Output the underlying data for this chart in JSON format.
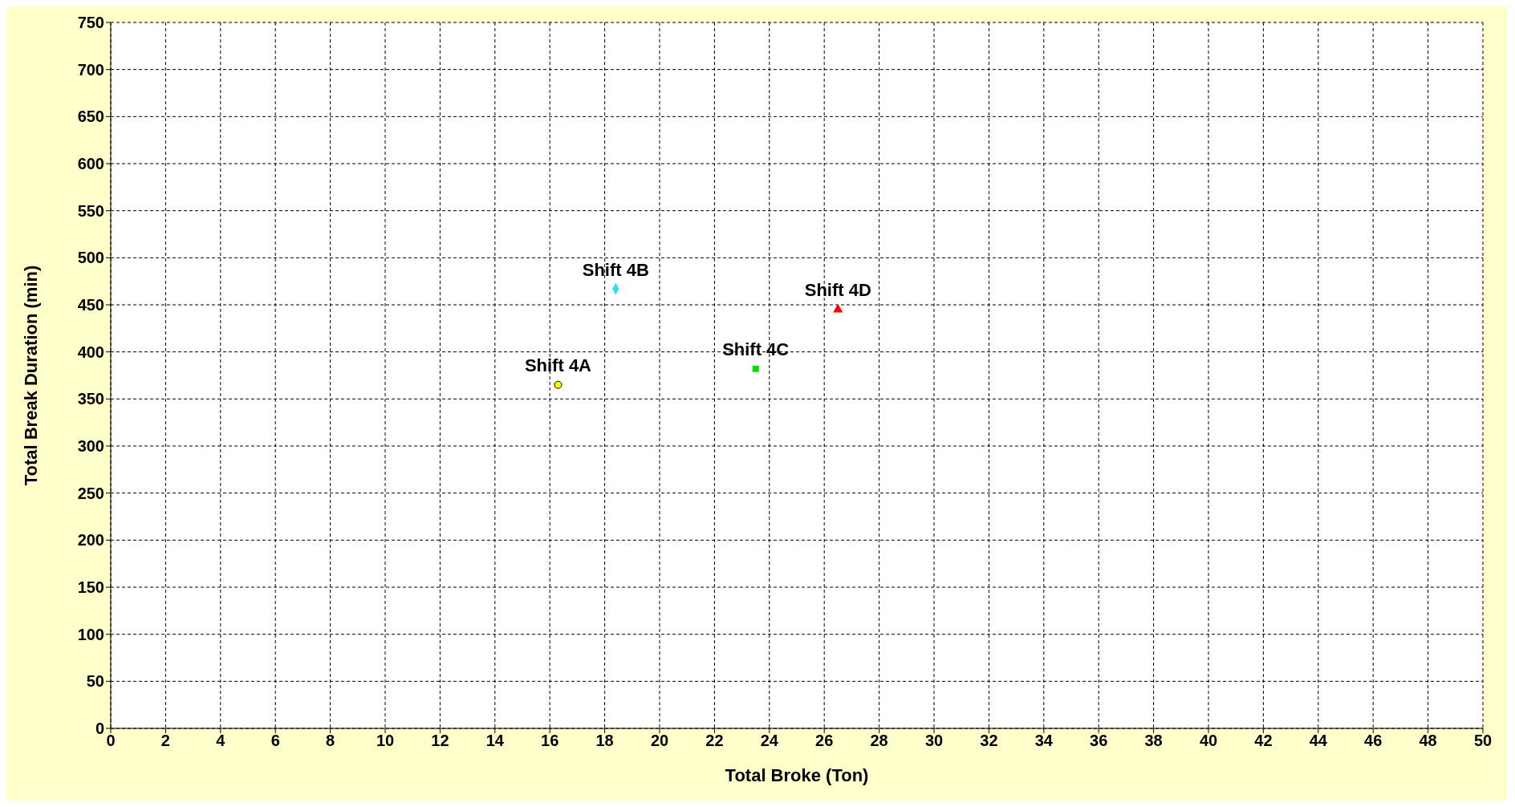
{
  "chart_data": {
    "type": "scatter",
    "xlabel": "Total Broke (Ton)",
    "ylabel": "Total Break Duration  (min)",
    "xlim": [
      0,
      50
    ],
    "xticks": [
      0,
      2,
      4,
      6,
      8,
      10,
      12,
      14,
      16,
      18,
      20,
      22,
      24,
      26,
      28,
      30,
      32,
      34,
      36,
      38,
      40,
      42,
      44,
      46,
      48,
      50
    ],
    "ylim": [
      0,
      750
    ],
    "yticks": [
      0,
      50,
      100,
      150,
      200,
      250,
      300,
      350,
      400,
      450,
      500,
      550,
      600,
      650,
      700,
      750
    ],
    "grid": true,
    "legend": false,
    "series": [
      {
        "name": "Shift 4A",
        "color": "#ffff00",
        "marker": "circle",
        "x": [
          16.3
        ],
        "values": [
          365
        ]
      },
      {
        "name": "Shift 4B",
        "color": "#33e0f0",
        "marker": "diamond",
        "x": [
          18.4
        ],
        "values": [
          467
        ]
      },
      {
        "name": "Shift 4C",
        "color": "#00e000",
        "marker": "square",
        "x": [
          23.5
        ],
        "values": [
          382
        ]
      },
      {
        "name": "Shift 4D",
        "color": "#ff0000",
        "marker": "triangle",
        "x": [
          26.5
        ],
        "values": [
          445
        ]
      }
    ]
  }
}
